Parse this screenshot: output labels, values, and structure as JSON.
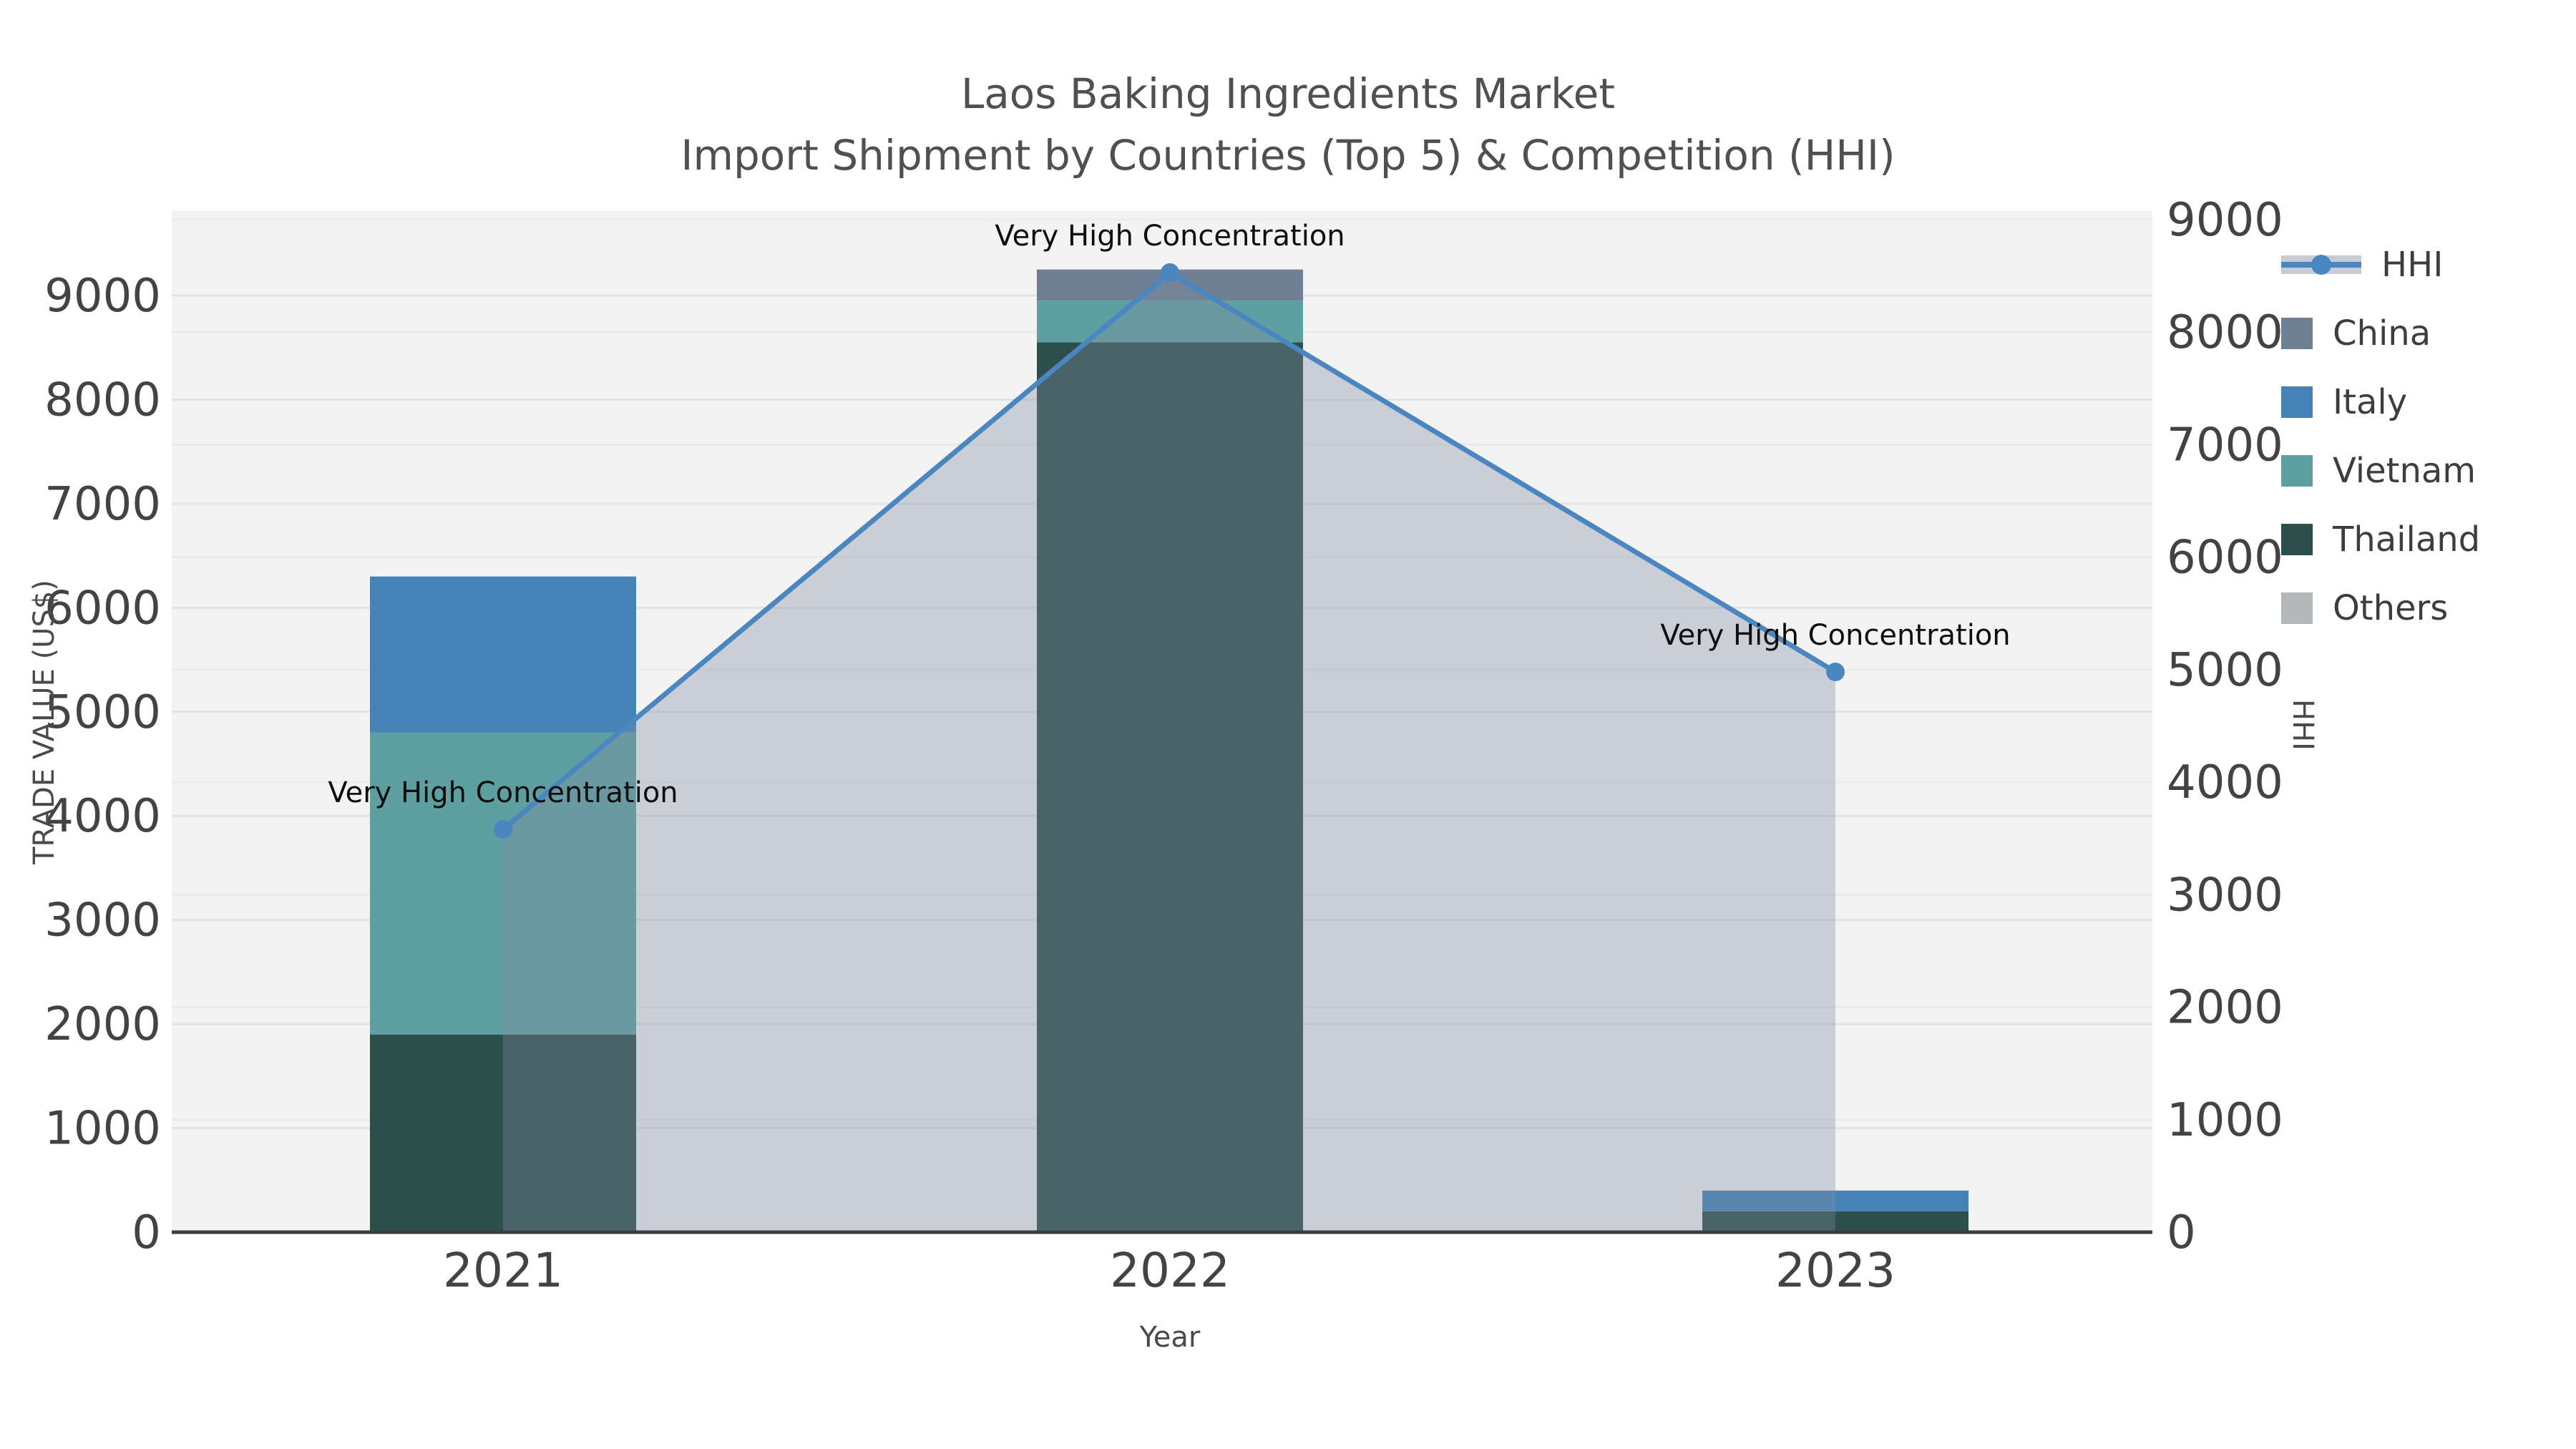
{
  "title": {
    "line1": "Laos Baking Ingredients Market",
    "line2": "Import Shipment by Countries (Top 5) & Competition (HHI)"
  },
  "axes": {
    "left": {
      "label": "TRADE VALUE (US$)",
      "ticks": [
        0,
        1000,
        2000,
        3000,
        4000,
        5000,
        6000,
        7000,
        8000,
        9000
      ]
    },
    "right": {
      "label": "HHI",
      "ticks": [
        0,
        1000,
        2000,
        3000,
        4000,
        5000,
        6000,
        7000,
        8000,
        9000
      ]
    },
    "x": {
      "label": "Year",
      "categories": [
        "2021",
        "2022",
        "2023"
      ]
    }
  },
  "legend": {
    "items": [
      {
        "label": "HHI",
        "type": "line",
        "color": "#4a86c0",
        "band": "#c8ccd6"
      },
      {
        "label": "China",
        "type": "swatch",
        "color": "#6f8094"
      },
      {
        "label": "Italy",
        "type": "swatch",
        "color": "#4583b7"
      },
      {
        "label": "Vietnam",
        "type": "swatch",
        "color": "#5ea0a2"
      },
      {
        "label": "Thailand",
        "type": "swatch",
        "color": "#2d4f4c"
      },
      {
        "label": "Others",
        "type": "swatch",
        "color": "#b5b8b8"
      }
    ]
  },
  "chart_data": {
    "type": "bar+line",
    "title": "Laos Baking Ingredients Market — Import Shipment by Countries (Top 5) & Competition (HHI)",
    "categories": [
      "2021",
      "2022",
      "2023"
    ],
    "stack_order": [
      "Thailand",
      "Vietnam",
      "Italy",
      "China",
      "Others"
    ],
    "series": [
      {
        "name": "China",
        "color": "#6f8094",
        "values": [
          0,
          300,
          0
        ]
      },
      {
        "name": "Italy",
        "color": "#4583b7",
        "values": [
          1500,
          0,
          200
        ]
      },
      {
        "name": "Vietnam",
        "color": "#5ea0a2",
        "values": [
          2900,
          400,
          0
        ]
      },
      {
        "name": "Thailand",
        "color": "#2d4f4c",
        "values": [
          1900,
          8550,
          200
        ]
      },
      {
        "name": "Others",
        "color": "#b5b8b8",
        "values": [
          0,
          0,
          0
        ]
      }
    ],
    "line_series": {
      "name": "HHI",
      "axis": "right",
      "color": "#4a86c0",
      "area_fill": "rgba(126,140,160,0.35)",
      "values": [
        3580,
        8530,
        4980
      ]
    },
    "annotations": [
      {
        "category": "2021",
        "text": "Very High Concentration"
      },
      {
        "category": "2022",
        "text": "Very High Concentration"
      },
      {
        "category": "2023",
        "text": "Very High Concentration"
      }
    ],
    "xlabel": "Year",
    "ylabel_left": "TRADE VALUE (US$)",
    "ylabel_right": "HHI",
    "ylim_left": [
      0,
      9000
    ],
    "ylim_right": [
      0,
      9000
    ],
    "grid": true,
    "legend_position": "outside-right-top"
  },
  "colors": {
    "plot_bg": "#f3f3f4",
    "grid_left": "#e2e3e6",
    "grid_right": "#eaebed",
    "axis_line": "#3d3d3d",
    "tick_text": "#434343",
    "title_text": "#505050",
    "annotation_text": "#0e0e0e"
  }
}
